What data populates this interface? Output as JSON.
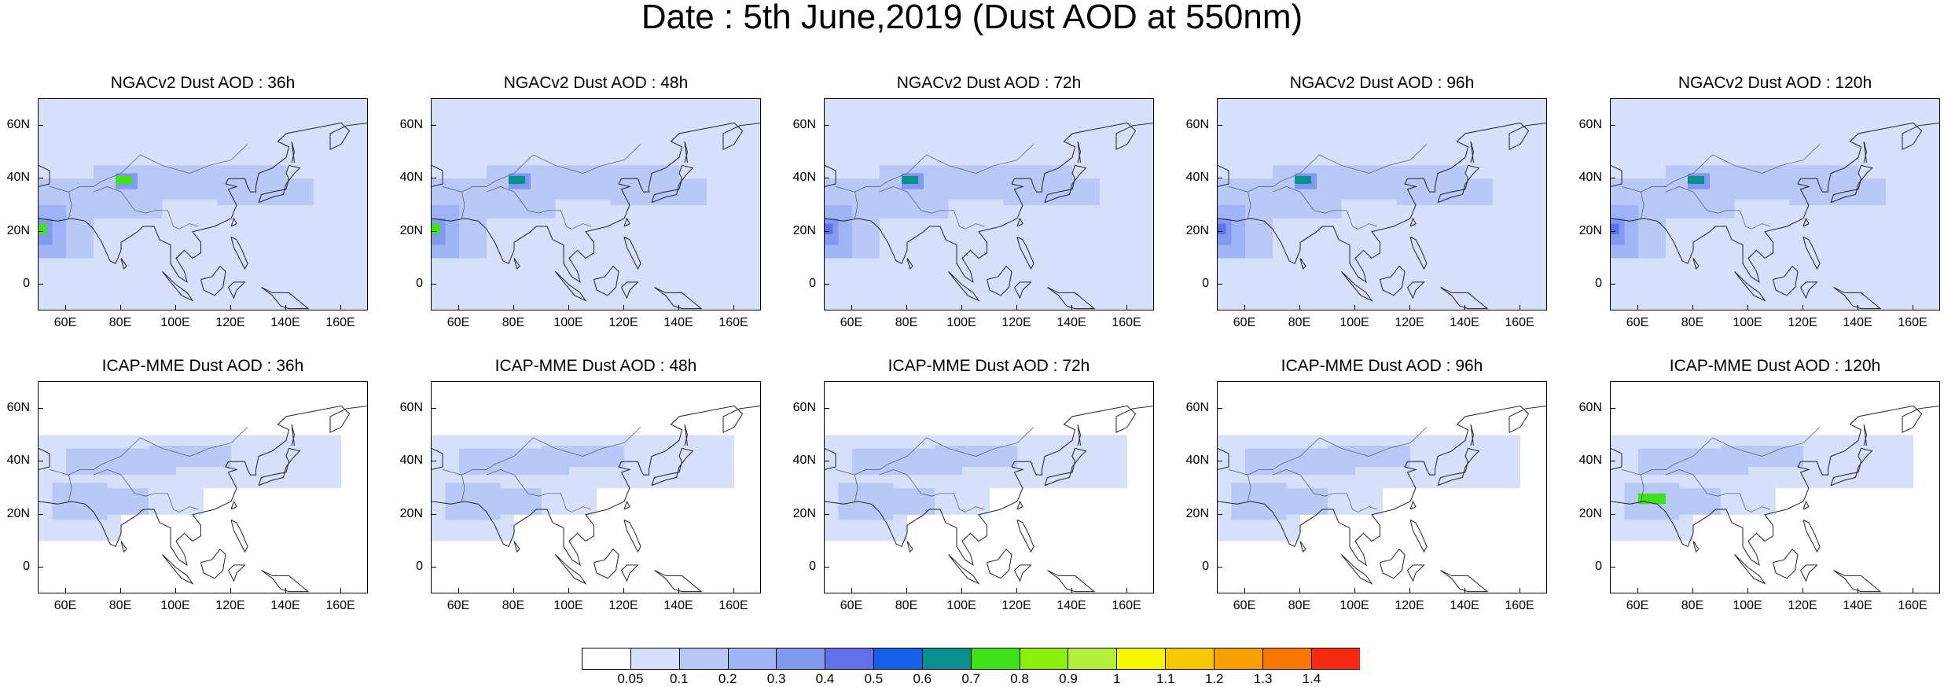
{
  "title": "Date : 5th June,2019 (Dust AOD at 550nm)",
  "lat_ticks": [
    "60N",
    "40N",
    "20N",
    "0"
  ],
  "lon_ticks": [
    "60E",
    "80E",
    "100E",
    "120E",
    "140E",
    "160E"
  ],
  "lat_values": [
    60,
    40,
    20,
    0
  ],
  "lon_values": [
    60,
    80,
    100,
    120,
    140,
    160
  ],
  "map_extent": {
    "lon_min": 50,
    "lon_max": 170,
    "lat_min": -10,
    "lat_max": 70
  },
  "panels": [
    {
      "title": "NGACv2 Dust AOD : 36h",
      "model": "NGACv2",
      "lead": "36h"
    },
    {
      "title": "NGACv2 Dust AOD : 48h",
      "model": "NGACv2",
      "lead": "48h"
    },
    {
      "title": "NGACv2 Dust AOD : 72h",
      "model": "NGACv2",
      "lead": "72h"
    },
    {
      "title": "NGACv2 Dust AOD : 96h",
      "model": "NGACv2",
      "lead": "96h"
    },
    {
      "title": "NGACv2 Dust AOD : 120h",
      "model": "NGACv2",
      "lead": "120h"
    },
    {
      "title": "ICAP-MME Dust AOD : 36h",
      "model": "ICAP-MME",
      "lead": "36h"
    },
    {
      "title": "ICAP-MME Dust AOD : 48h",
      "model": "ICAP-MME",
      "lead": "48h"
    },
    {
      "title": "ICAP-MME Dust AOD : 72h",
      "model": "ICAP-MME",
      "lead": "72h"
    },
    {
      "title": "ICAP-MME Dust AOD : 96h",
      "model": "ICAP-MME",
      "lead": "96h"
    },
    {
      "title": "ICAP-MME Dust AOD : 120h",
      "model": "ICAP-MME",
      "lead": "120h"
    }
  ],
  "colorbar": {
    "labels": [
      "0.05",
      "0.1",
      "0.2",
      "0.3",
      "0.4",
      "0.5",
      "0.6",
      "0.7",
      "0.8",
      "0.9",
      "1",
      "1.1",
      "1.2",
      "1.3",
      "1.4"
    ],
    "colors": [
      "#ffffff",
      "#d6e0fb",
      "#b8c9f7",
      "#9fb4f4",
      "#8199ef",
      "#5f70e8",
      "#1560e6",
      "#0a8f8f",
      "#3ee21a",
      "#8ef00f",
      "#b4f03a",
      "#f7f700",
      "#f7c800",
      "#f7a000",
      "#f77700",
      "#f72a10"
    ]
  }
}
